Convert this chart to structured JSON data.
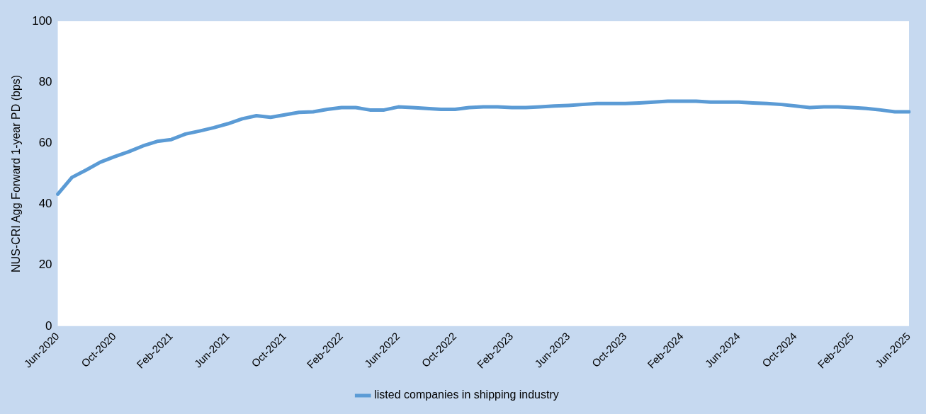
{
  "chart_data": {
    "type": "line",
    "ylabel": "NUS-CRI Agg Forward 1-year PD (bps)",
    "categories": [
      "Jun-2020",
      null,
      null,
      null,
      "Oct-2020",
      null,
      null,
      null,
      "Feb-2021",
      null,
      null,
      null,
      "Jun-2021",
      null,
      null,
      null,
      "Oct-2021",
      null,
      null,
      null,
      "Feb-2022",
      null,
      null,
      null,
      "Jun-2022",
      null,
      null,
      null,
      "Oct-2022",
      null,
      null,
      null,
      "Feb-2023",
      null,
      null,
      null,
      "Jun-2023",
      null,
      null,
      null,
      "Oct-2023",
      null,
      null,
      null,
      "Feb-2024",
      null,
      null,
      null,
      "Jun-2024",
      null,
      null,
      null,
      "Oct-2024",
      null,
      null,
      null,
      "Feb-2025",
      null,
      null,
      null,
      "Jun-2025"
    ],
    "series": [
      {
        "name": "listed companies in shipping industry",
        "color": "#5b9bd5",
        "values": [
          43.3,
          48.8,
          51.2,
          53.8,
          55.6,
          57.2,
          59.1,
          60.6,
          61.2,
          63,
          64,
          65.1,
          66.4,
          68,
          69,
          68.5,
          69.3,
          70.1,
          70.3,
          71.1,
          71.7,
          71.7,
          70.9,
          70.9,
          71.9,
          71.7,
          71.4,
          71.1,
          71.1,
          71.7,
          71.9,
          71.9,
          71.7,
          71.7,
          71.9,
          72.2,
          72.4,
          72.7,
          73,
          73,
          73,
          73.2,
          73.5,
          73.8,
          73.8,
          73.8,
          73.5,
          73.5,
          73.5,
          73.2,
          73,
          72.7,
          72.2,
          71.7,
          71.9,
          71.9,
          71.7,
          71.4,
          70.9,
          70.3,
          70.3
        ]
      }
    ],
    "ylim": [
      0,
      100
    ],
    "yticks": [
      0,
      20,
      40,
      60,
      80,
      100
    ],
    "grid": false,
    "legend": "bottom",
    "marker": "none",
    "line_style": "solid"
  }
}
